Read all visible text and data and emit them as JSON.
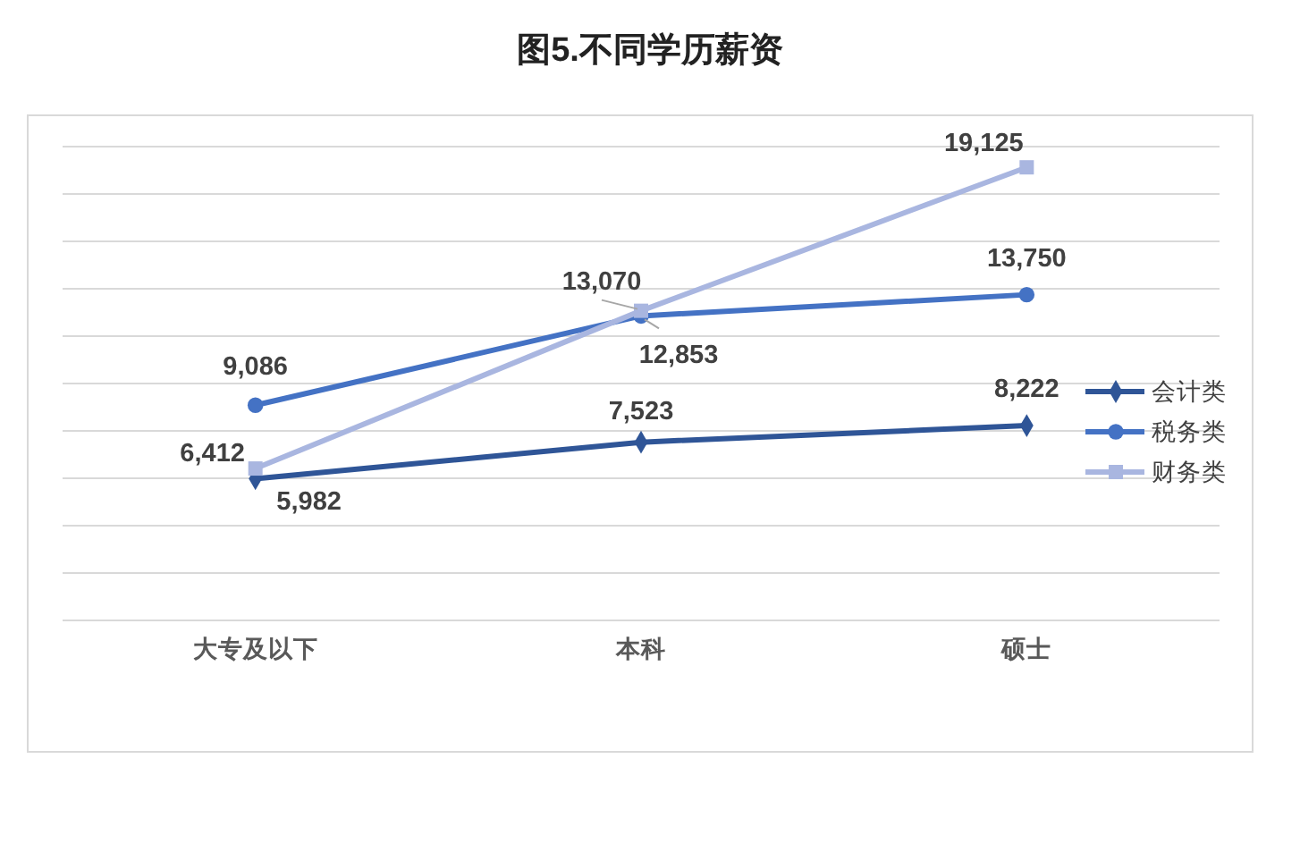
{
  "chart_data": {
    "type": "line",
    "title": "图5.不同学历薪资",
    "categories": [
      "大专及以下",
      "本科",
      "硕士"
    ],
    "series": [
      {
        "name": "会计类",
        "color": "#2f5597",
        "marker": "diamond",
        "values": [
          5982,
          7523,
          8222
        ],
        "value_labels": [
          "5,982",
          "7,523",
          "8,222"
        ]
      },
      {
        "name": "税务类",
        "color": "#4472c4",
        "marker": "circle",
        "values": [
          9086,
          12853,
          13750
        ],
        "value_labels": [
          "9,086",
          "12,853",
          "13,750"
        ]
      },
      {
        "name": "财务类",
        "color": "#a9b6e0",
        "marker": "square",
        "values": [
          6412,
          13070,
          19125
        ],
        "value_labels": [
          "6,412",
          "13,070",
          "19,125"
        ]
      }
    ],
    "tick_labels": "x",
    "grid": "y",
    "legend": "right",
    "line_style": "solid"
  }
}
